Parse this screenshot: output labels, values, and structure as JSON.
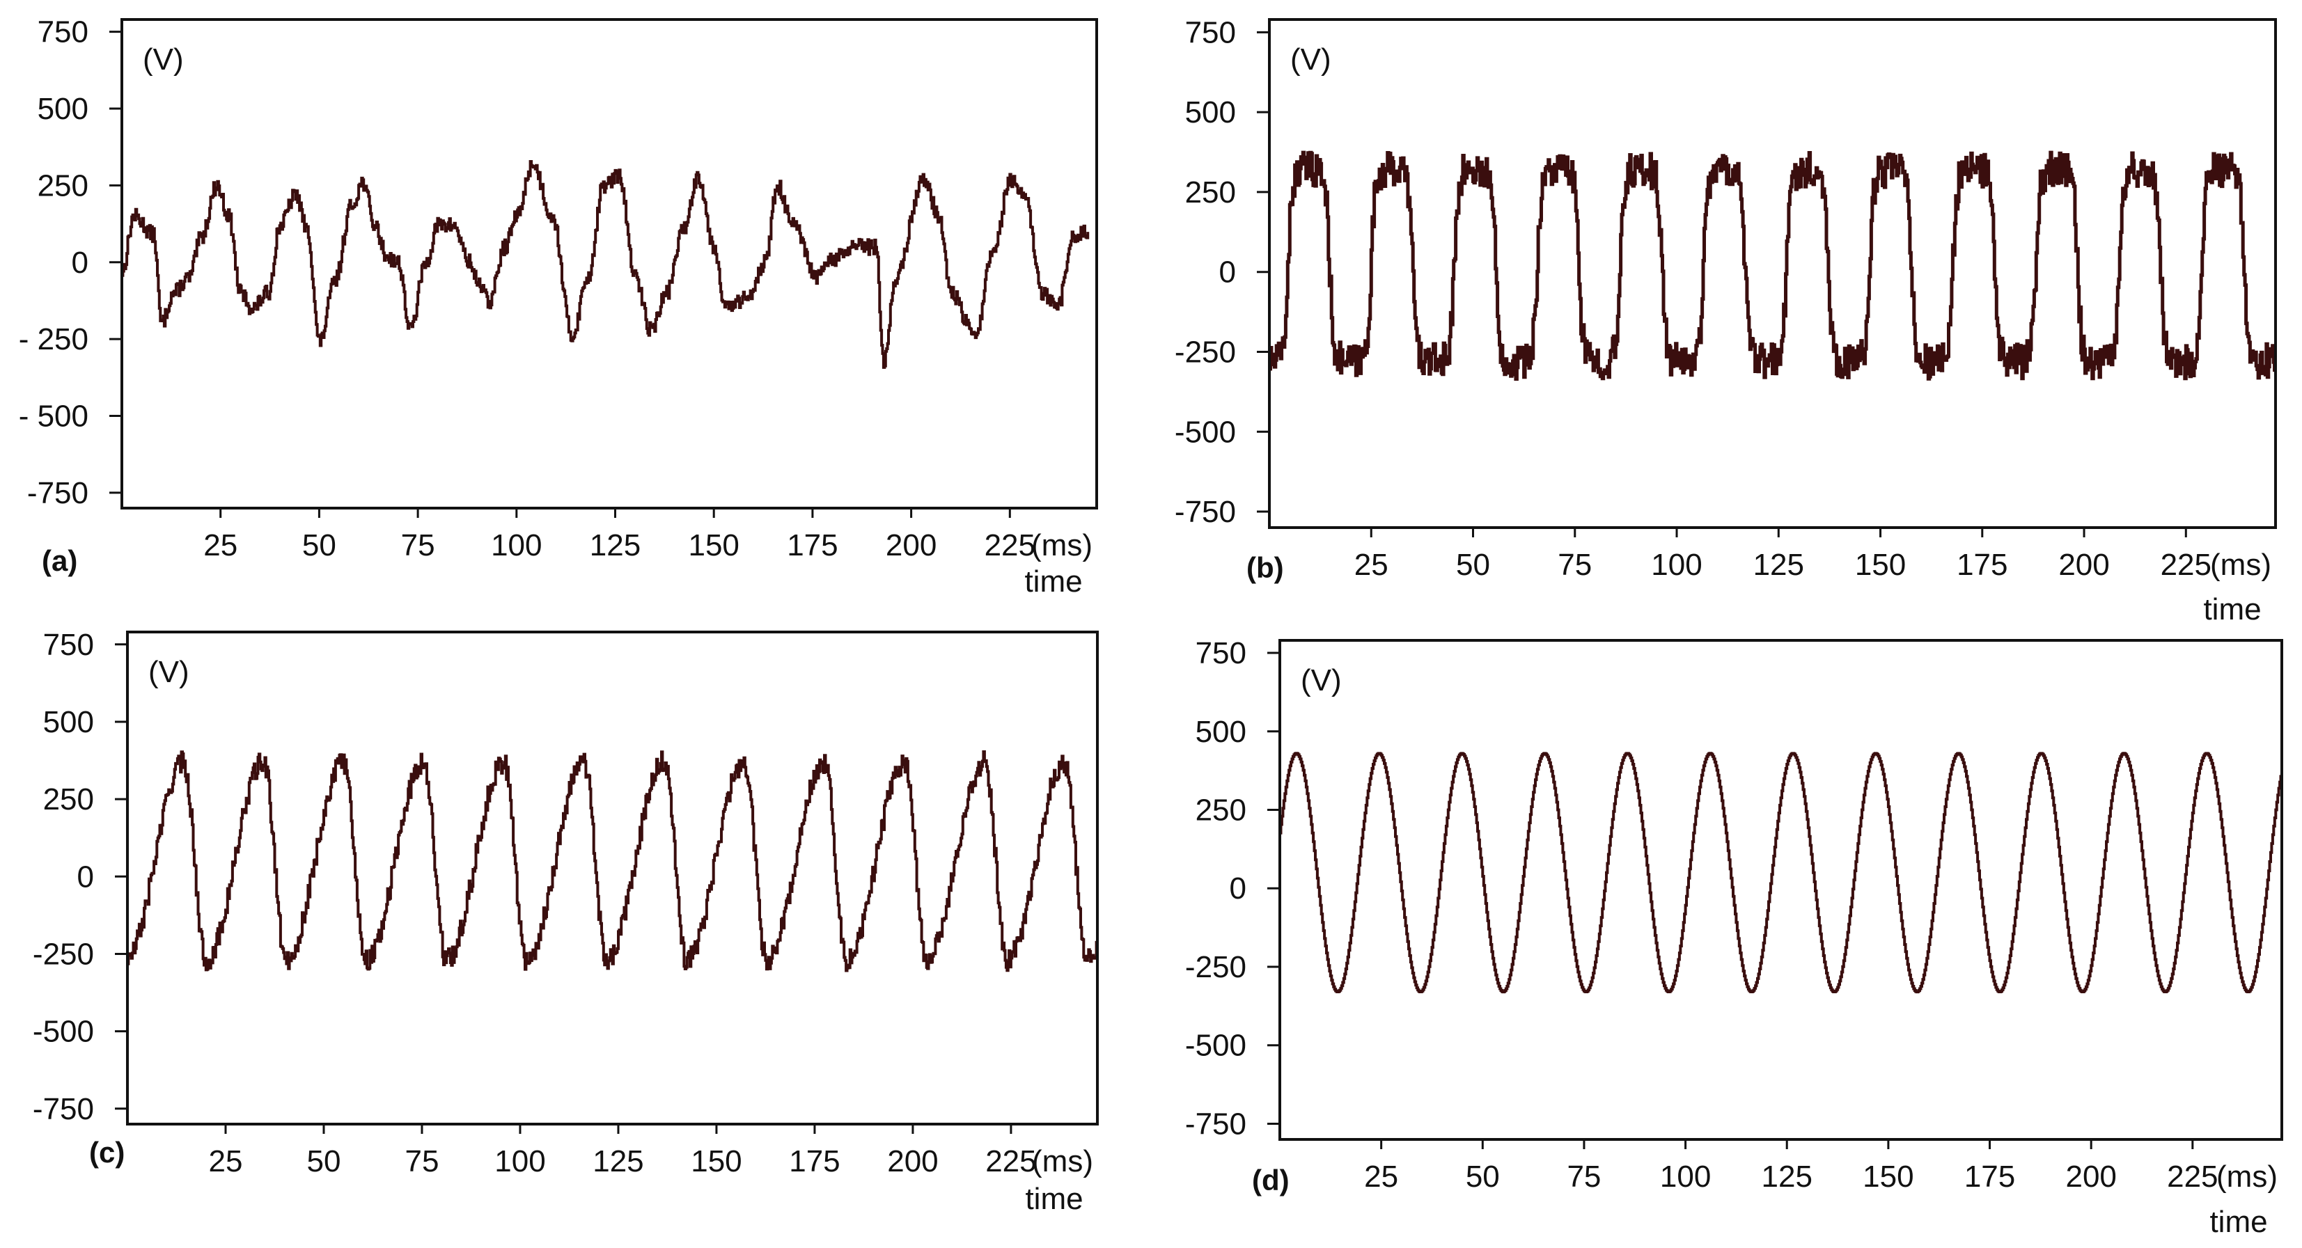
{
  "figure": {
    "panels": [
      "(a)",
      "(b)",
      "(c)",
      "(d)"
    ],
    "trace_color": "#3a0e0e",
    "frame_color": "#111111",
    "background": "#ffffff"
  },
  "chart_data": [
    {
      "type": "line",
      "panel_label": "(a)",
      "unit_label": "(V)",
      "xlabel": "time",
      "x_unit": "(ms)",
      "xlim": [
        0,
        247
      ],
      "ylim": [
        -800,
        790
      ],
      "x_ticks": [
        25,
        50,
        75,
        100,
        125,
        150,
        175,
        200,
        225
      ],
      "y_ticks": [
        750,
        500,
        250,
        0,
        -250,
        -500,
        -750
      ],
      "y_tick_labels": [
        "750",
        "500",
        "250",
        "0",
        "- 250",
        "- 500",
        "-750"
      ],
      "grid": false,
      "series": [
        {
          "color": "#3a0e0e",
          "noise": 25,
          "x": [
            0,
            3,
            8,
            10,
            13,
            17,
            20,
            24,
            27,
            30,
            33,
            37,
            40,
            44,
            47,
            50,
            54,
            58,
            61,
            64,
            67,
            70,
            73,
            77,
            80,
            84,
            88,
            90,
            93,
            97,
            100,
            104,
            109,
            114,
            118,
            122,
            126,
            130,
            134,
            138,
            142,
            146,
            150,
            153,
            158,
            163,
            166,
            170,
            176,
            180,
            186,
            191,
            193,
            196,
            203,
            207,
            210,
            216,
            221,
            225,
            229,
            233,
            237,
            241,
            245
          ],
          "y": [
            -30,
            150,
            90,
            -200,
            -100,
            -50,
            80,
            250,
            150,
            -100,
            -150,
            -100,
            120,
            220,
            100,
            -260,
            -60,
            180,
            260,
            120,
            20,
            0,
            -220,
            0,
            120,
            120,
            0,
            -60,
            -130,
            50,
            150,
            320,
            150,
            -240,
            -50,
            250,
            280,
            -50,
            -220,
            -100,
            100,
            280,
            50,
            -150,
            -120,
            0,
            250,
            120,
            -50,
            10,
            50,
            50,
            -330,
            -50,
            270,
            150,
            -100,
            -240,
            50,
            270,
            200,
            -100,
            -150,
            80,
            100
          ]
        }
      ]
    },
    {
      "type": "line",
      "panel_label": "(b)",
      "unit_label": "(V)",
      "xlabel": "time",
      "x_unit": "(ms)",
      "xlim": [
        0,
        247
      ],
      "ylim": [
        -800,
        790
      ],
      "x_ticks": [
        25,
        50,
        75,
        100,
        125,
        150,
        175,
        200,
        225
      ],
      "y_ticks": [
        750,
        500,
        250,
        0,
        -250,
        -500,
        -750
      ],
      "y_tick_labels": [
        "750",
        "500",
        "250",
        "0",
        "-250",
        "-500",
        "-750"
      ],
      "grid": false,
      "series": [
        {
          "color": "#3a0e0e",
          "wave": {
            "period": 20.4,
            "phase": 4.5,
            "amplitude": 300,
            "offset": 20,
            "shape": "square",
            "noise": 55
          }
        }
      ]
    },
    {
      "type": "line",
      "panel_label": "(c)",
      "unit_label": "(V)",
      "xlabel": "time",
      "x_unit": "(ms)",
      "xlim": [
        0,
        247
      ],
      "ylim": [
        -800,
        790
      ],
      "x_ticks": [
        25,
        50,
        75,
        100,
        125,
        150,
        175,
        200,
        225
      ],
      "y_ticks": [
        750,
        500,
        250,
        0,
        -250,
        -500,
        -750
      ],
      "y_tick_labels": [
        "750",
        "500",
        "250",
        "0",
        "-250",
        "-500",
        "-750"
      ],
      "grid": false,
      "series": [
        {
          "color": "#3a0e0e",
          "wave": {
            "period": 20.4,
            "phase": -0.5,
            "amplitude": 320,
            "offset": 50,
            "shape": "sawtooth",
            "noise": 35
          }
        }
      ]
    },
    {
      "type": "line",
      "panel_label": "(d)",
      "unit_label": "(V)",
      "xlabel": "time",
      "x_unit": "(ms)",
      "xlim": [
        0,
        247
      ],
      "ylim": [
        -800,
        790
      ],
      "x_ticks": [
        25,
        50,
        75,
        100,
        125,
        150,
        175,
        200,
        225
      ],
      "y_ticks": [
        750,
        500,
        250,
        0,
        -250,
        -500,
        -750
      ],
      "y_tick_labels": [
        "750",
        "500",
        "250",
        "0",
        "-250",
        "-500",
        "-750"
      ],
      "grid": false,
      "series": [
        {
          "color": "#3a0e0e",
          "wave": {
            "period": 20.4,
            "phase": -1.1,
            "amplitude": 380,
            "offset": 50,
            "shape": "sine",
            "noise": 0
          }
        }
      ]
    }
  ]
}
